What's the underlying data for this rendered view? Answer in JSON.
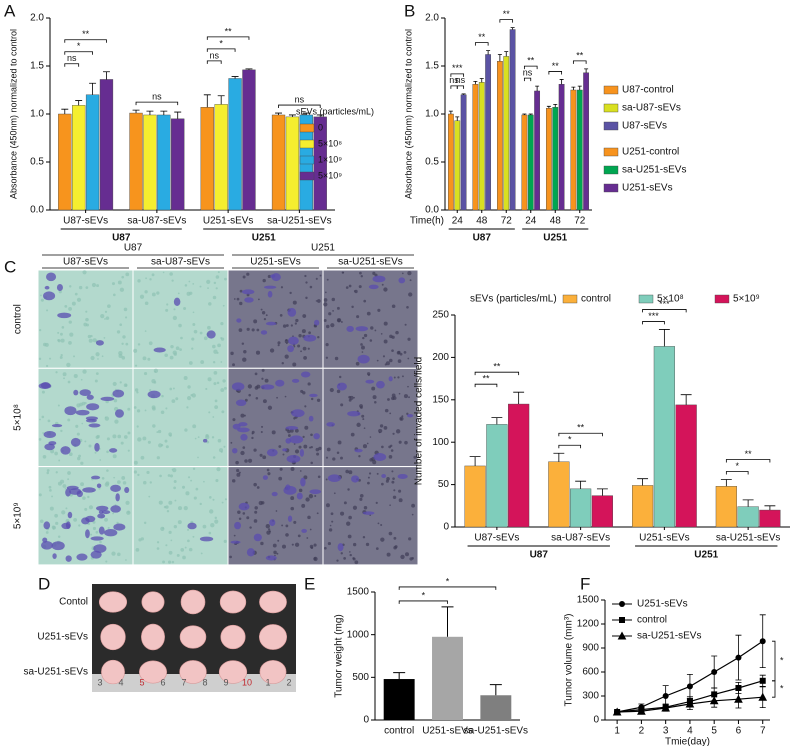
{
  "chart_data": [
    {
      "type": "bar",
      "panel": "A",
      "y_label": "Absorbance (450nm) normalized to control",
      "legend_title": "sEVs (particles/mL)",
      "categories": [
        "U87-sEVs",
        "sa-U87-sEVs",
        "U251-sEVs",
        "sa-U251-sEVs"
      ],
      "groups": [
        "U87",
        "U251"
      ],
      "series": [
        {
          "name": "0",
          "color": "#f7941d",
          "values": [
            1.0,
            1.01,
            1.07,
            0.99
          ],
          "errors": [
            0.05,
            0.03,
            0.13,
            0.02
          ]
        },
        {
          "name": "5×10⁸",
          "color": "#f5ee2f",
          "values": [
            1.09,
            0.99,
            1.1,
            0.97
          ],
          "errors": [
            0.05,
            0.04,
            0.09,
            0.02
          ]
        },
        {
          "name": "1×10⁹",
          "color": "#29abe2",
          "values": [
            1.2,
            0.99,
            1.37,
            0.99
          ],
          "errors": [
            0.12,
            0.04,
            0.02,
            0.02
          ]
        },
        {
          "name": "5×10⁹",
          "color": "#662d91",
          "values": [
            1.36,
            0.95,
            1.46,
            0.97
          ],
          "errors": [
            0.08,
            0.07,
            0.01,
            0.02
          ]
        }
      ],
      "significance": [
        [
          "ns",
          "*",
          "**"
        ],
        [
          "ns"
        ],
        [
          "ns",
          "*",
          "**"
        ],
        [
          "ns"
        ]
      ],
      "ylim": [
        0,
        2.0
      ],
      "yticks": [
        {
          "value": 0,
          "label": "0.0"
        },
        0.5,
        {
          "value": 1,
          "label": "1.0"
        },
        1.5,
        {
          "value": 2,
          "label": "2.0"
        }
      ]
    },
    {
      "type": "bar",
      "panel": "B",
      "y_label": "Absorbance (450nm) normalized to control",
      "x_label": "Time(h)",
      "categories": [
        "24",
        "48",
        "72",
        "24",
        "48",
        "72"
      ],
      "groups": [
        "U87",
        "U251"
      ],
      "series": [
        {
          "name": "U87-control",
          "color": "#f7931e",
          "values": [
            1.0,
            1.31,
            1.55,
            null,
            null,
            null
          ],
          "errors": [
            0.03,
            0.03,
            0.07,
            null,
            null,
            null
          ]
        },
        {
          "name": "sa-U87-sEVs",
          "color": "#d9e021",
          "values": [
            0.93,
            1.33,
            1.6,
            null,
            null,
            null
          ],
          "errors": [
            0.04,
            0.04,
            0.05,
            null,
            null,
            null
          ]
        },
        {
          "name": "U87-sEVs",
          "color": "#5b53a4",
          "values": [
            1.2,
            1.62,
            1.88,
            null,
            null,
            null
          ],
          "errors": [
            0.01,
            0.04,
            0.02,
            null,
            null,
            null
          ]
        },
        {
          "name": "U251-control",
          "color": "#f7931e",
          "values": [
            null,
            null,
            null,
            0.99,
            1.06,
            1.25
          ],
          "errors": [
            null,
            null,
            null,
            0.01,
            0.02,
            0.03
          ]
        },
        {
          "name": "sa-U251-sEVs",
          "color": "#00a651",
          "values": [
            null,
            null,
            null,
            0.99,
            1.07,
            1.25
          ],
          "errors": [
            null,
            null,
            null,
            0.01,
            0.03,
            0.04
          ]
        },
        {
          "name": "U251-sEVs",
          "color": "#662d91",
          "values": [
            null,
            null,
            null,
            1.24,
            1.31,
            1.43
          ],
          "errors": [
            null,
            null,
            null,
            0.05,
            0.05,
            0.04
          ]
        }
      ],
      "significance": [
        [
          "ns",
          "ns",
          "***"
        ],
        [
          "**"
        ],
        [
          "**"
        ],
        [
          "ns",
          "**"
        ],
        [
          "**"
        ],
        [
          "**"
        ]
      ],
      "ylim": [
        0,
        2.0
      ],
      "yticks": [
        {
          "value": 0,
          "label": "0.0"
        },
        0.5,
        {
          "value": 1,
          "label": "1.0"
        },
        1.5,
        {
          "value": 2,
          "label": "2.0"
        }
      ]
    },
    {
      "type": "bar",
      "panel": "C",
      "y_label": "Number of invaded cells/field",
      "legend_title": "sEVs (particles/mL)",
      "micrographs": {
        "groups": [
          "U87",
          "U251"
        ],
        "columns": [
          "U87-sEVs",
          "sa-U87-sEVs",
          "U251-sEVs",
          "sa-U251-sEVs"
        ],
        "rows": [
          "control",
          "5×10⁸",
          "5×10⁹"
        ]
      },
      "categories": [
        "U87-sEVs",
        "sa-U87-sEVs",
        "U251-sEVs",
        "sa-U251-sEVs"
      ],
      "groups": [
        "U87",
        "U251"
      ],
      "series": [
        {
          "name": "control",
          "color": "#fbb03b",
          "values": [
            72,
            77,
            49,
            48
          ],
          "errors": [
            11,
            10,
            8,
            8
          ]
        },
        {
          "name": "5×10⁸",
          "color": "#7fcdbb",
          "values": [
            121,
            45,
            213,
            24
          ],
          "errors": [
            8,
            9,
            20,
            8
          ]
        },
        {
          "name": "5×10⁹",
          "color": "#d4145a",
          "values": [
            145,
            37,
            144,
            20
          ],
          "errors": [
            14,
            8,
            12,
            5
          ]
        }
      ],
      "significance": [
        [
          "**",
          "**"
        ],
        [
          "*",
          "**"
        ],
        [
          "***",
          "***"
        ],
        [
          "*",
          "**"
        ]
      ],
      "ylim": [
        0,
        250
      ],
      "yticks": [
        0,
        50,
        100,
        150,
        200,
        250
      ]
    },
    {
      "type": "photo",
      "panel": "D",
      "rows": [
        "Contol",
        "U251-sEVs",
        "sa-U251-sEVs"
      ],
      "ruler_labels": [
        "3",
        "4",
        "5",
        "6",
        "7",
        "8",
        "9",
        "10",
        "1",
        "2"
      ]
    },
    {
      "type": "bar",
      "panel": "E",
      "y_label": "Tumor weight (mg)",
      "categories": [
        "control",
        "U251-sEVs",
        "sa-U251-sEVs"
      ],
      "values": [
        480,
        975,
        290
      ],
      "errors": [
        75,
        350,
        125
      ],
      "colors": [
        "#000000",
        "#a6a6a6",
        "#7f7f7f"
      ],
      "significance": [
        "*",
        "*"
      ],
      "ylim": [
        0,
        1500
      ],
      "yticks": [
        0,
        500,
        1000,
        1500
      ]
    },
    {
      "type": "line",
      "panel": "F",
      "x_label": "Tmie(day)",
      "y_label": "Tumor volume (mm³)",
      "x": [
        1,
        2,
        3,
        4,
        5,
        6,
        7
      ],
      "series": [
        {
          "name": "U251-sEVs",
          "color": "#000000",
          "marker": "circle",
          "values": [
            100,
            160,
            300,
            420,
            600,
            780,
            985
          ],
          "errors": [
            10,
            40,
            130,
            150,
            200,
            280,
            330
          ]
        },
        {
          "name": "control",
          "color": "#000000",
          "marker": "square",
          "values": [
            100,
            130,
            160,
            230,
            320,
            400,
            490
          ],
          "errors": [
            10,
            30,
            40,
            60,
            80,
            70,
            70
          ]
        },
        {
          "name": "sa-U251-sEVs",
          "color": "#000000",
          "marker": "triangle",
          "values": [
            100,
            110,
            150,
            200,
            240,
            260,
            285
          ],
          "errors": [
            10,
            30,
            40,
            70,
            80,
            110,
            130
          ]
        }
      ],
      "significance": [
        "*",
        "*"
      ],
      "xlim": [
        0.5,
        7.3
      ],
      "xticks": [
        1,
        2,
        3,
        4,
        5,
        6,
        7
      ],
      "ylim": [
        0,
        1500
      ],
      "yticks": [
        0,
        300,
        600,
        900,
        1200,
        1500
      ]
    }
  ]
}
